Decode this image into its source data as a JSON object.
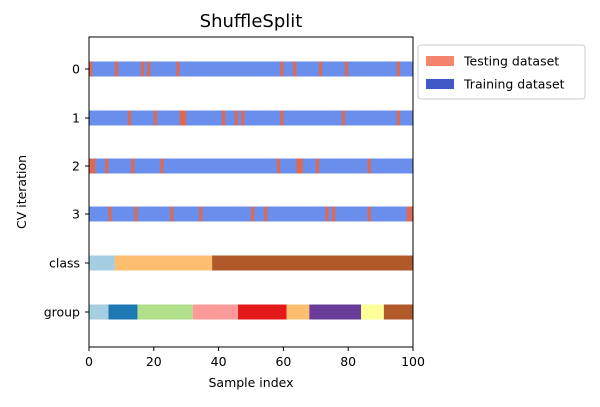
{
  "chart_data": {
    "type": "cv-split-strips",
    "title": "ShuffleSplit",
    "xlabel": "Sample index",
    "ylabel": "CV iteration",
    "xlim": [
      0,
      100
    ],
    "xticks": [
      0,
      20,
      40,
      60,
      80,
      100
    ],
    "rows": [
      "0",
      "1",
      "2",
      "3",
      "class",
      "group"
    ],
    "legend": {
      "position": "outside-top-right",
      "entries": [
        {
          "label": "Testing dataset",
          "color": "#f4846b"
        },
        {
          "label": "Training dataset",
          "color": "#3f58c6"
        }
      ]
    },
    "colors": {
      "train": "#6a8eeb",
      "test": "#dd6a52"
    },
    "splits": [
      {
        "name": "0",
        "test_indices": [
          0,
          8,
          16,
          18,
          27,
          59,
          63,
          71,
          79,
          95
        ]
      },
      {
        "name": "1",
        "test_indices": [
          12,
          20,
          28,
          29,
          41,
          45,
          47,
          59,
          78,
          95
        ]
      },
      {
        "name": "2",
        "test_indices": [
          0,
          1,
          5,
          13,
          22,
          58,
          64,
          65,
          70,
          86
        ]
      },
      {
        "name": "3",
        "test_indices": [
          6,
          14,
          25,
          34,
          50,
          54,
          73,
          75,
          86,
          98,
          99
        ]
      }
    ],
    "class_segments": [
      {
        "start": 0,
        "end": 8,
        "color": "#a6cee3"
      },
      {
        "start": 8,
        "end": 38,
        "color": "#fdbf6f"
      },
      {
        "start": 38,
        "end": 100,
        "color": "#b15928"
      }
    ],
    "group_segments": [
      {
        "start": 0,
        "end": 6,
        "color": "#a6cee3"
      },
      {
        "start": 6,
        "end": 15,
        "color": "#1f78b4"
      },
      {
        "start": 15,
        "end": 32,
        "color": "#b2df8a"
      },
      {
        "start": 32,
        "end": 46,
        "color": "#fb9a99"
      },
      {
        "start": 46,
        "end": 61,
        "color": "#e31a1c"
      },
      {
        "start": 61,
        "end": 68,
        "color": "#fdbf6f"
      },
      {
        "start": 68,
        "end": 84,
        "color": "#6a3d9a"
      },
      {
        "start": 84,
        "end": 91,
        "color": "#ffff99"
      },
      {
        "start": 91,
        "end": 100,
        "color": "#b15928"
      }
    ]
  }
}
